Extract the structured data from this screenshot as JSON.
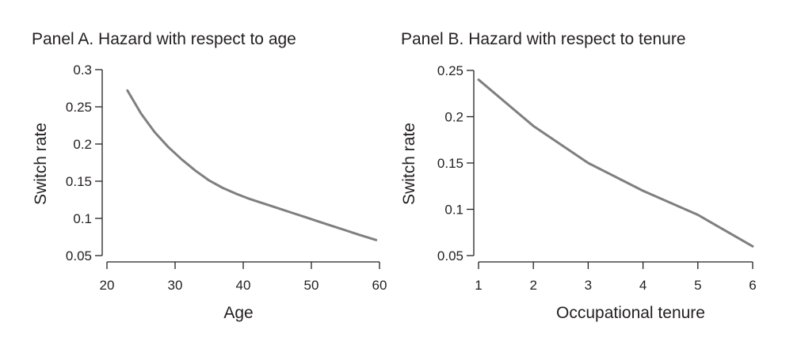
{
  "chart_data": [
    {
      "type": "line",
      "title": "Panel A. Hazard with respect to age",
      "xlabel": "Age",
      "ylabel": "Switch rate",
      "xlim": [
        20,
        60
      ],
      "ylim": [
        0.05,
        0.3
      ],
      "xticks": [
        20,
        30,
        40,
        50,
        60
      ],
      "xtick_labels": [
        "20",
        "30",
        "40",
        "50",
        "60"
      ],
      "yticks": [
        0.05,
        0.1,
        0.15,
        0.2,
        0.25,
        0.3
      ],
      "ytick_labels": [
        "0.05",
        "0.1",
        "0.15",
        "0.2",
        "0.25",
        "0.3"
      ],
      "grid": false,
      "series": [
        {
          "color": "#7f7f7f",
          "x": [
            23,
            25,
            27,
            29,
            31,
            33,
            35,
            37,
            39,
            41,
            43,
            45,
            47,
            49,
            51,
            53,
            55,
            57,
            59.5
          ],
          "y": [
            0.272,
            0.241,
            0.216,
            0.196,
            0.179,
            0.164,
            0.151,
            0.141,
            0.133,
            0.126,
            0.12,
            0.114,
            0.108,
            0.102,
            0.096,
            0.09,
            0.084,
            0.078,
            0.071
          ]
        }
      ]
    },
    {
      "type": "line",
      "title": "Panel B. Hazard with respect to tenure",
      "xlabel": "Occupational tenure",
      "ylabel": "Switch rate",
      "xlim": [
        1,
        6
      ],
      "ylim": [
        0.05,
        0.25
      ],
      "xticks": [
        1,
        2,
        3,
        4,
        5,
        6
      ],
      "xtick_labels": [
        "1",
        "2",
        "3",
        "4",
        "5",
        "6"
      ],
      "yticks": [
        0.05,
        0.1,
        0.15,
        0.2,
        0.25
      ],
      "ytick_labels": [
        "0.05",
        "0.1",
        "0.15",
        "0.2",
        "0.25"
      ],
      "grid": false,
      "series": [
        {
          "color": "#7f7f7f",
          "x": [
            1,
            2,
            3,
            4,
            5,
            6
          ],
          "y": [
            0.24,
            0.19,
            0.15,
            0.12,
            0.094,
            0.06
          ]
        }
      ]
    }
  ]
}
